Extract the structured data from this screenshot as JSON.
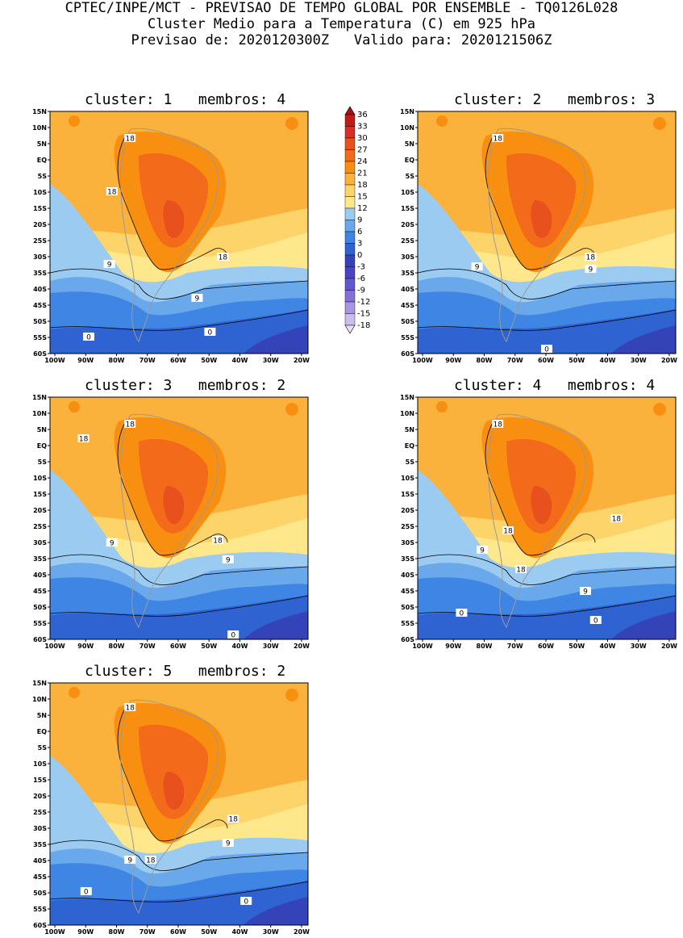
{
  "header": {
    "line1": "CPTEC/INPE/MCT - PREVISAO DE TEMPO GLOBAL POR ENSEMBLE - TQ0126L028",
    "line2": "Cluster Medio para a Temperatura (C) em 925 hPa",
    "line3": "Previsao de: 2020120300Z   Valido para: 2020121506Z"
  },
  "lat_ticks": [
    "15N",
    "10N",
    "5N",
    "EQ",
    "5S",
    "10S",
    "15S",
    "20S",
    "25S",
    "30S",
    "35S",
    "40S",
    "45S",
    "50S",
    "55S",
    "60S"
  ],
  "lon_ticks": [
    "100W",
    "90W",
    "80W",
    "70W",
    "60W",
    "50W",
    "40W",
    "30W",
    "20W"
  ],
  "colorbar": {
    "labels": [
      "36",
      "33",
      "30",
      "27",
      "24",
      "21",
      "18",
      "15",
      "12",
      "9",
      "6",
      "3",
      "0",
      "-3",
      "-6",
      "-9",
      "-12",
      "-15",
      "-18"
    ],
    "colors": [
      "#a50f15",
      "#c01a1a",
      "#d62f26",
      "#e8501e",
      "#f26a1a",
      "#f98f10",
      "#fbb23c",
      "#fdd46a",
      "#fee88b",
      "#9ccbf2",
      "#6aa8ec",
      "#3f85e3",
      "#2f63d2",
      "#3443b8",
      "#4a44c4",
      "#6456ce",
      "#8671d8",
      "#a996e2",
      "#cbbdee",
      "#e8e0f6"
    ]
  },
  "panels": [
    {
      "title": "cluster: 1   membros: 4",
      "contour_labels": [
        "18",
        "18",
        "18",
        "9",
        "9",
        "0",
        "0"
      ]
    },
    {
      "title": "cluster: 2   membros: 3",
      "contour_labels": [
        "18",
        "18",
        "9",
        "9",
        "0"
      ]
    },
    {
      "title": "cluster: 3   membros: 2",
      "contour_labels": [
        "18",
        "18",
        "18",
        "9",
        "9",
        "0"
      ]
    },
    {
      "title": "cluster: 4   membros: 4",
      "contour_labels": [
        "18",
        "18",
        "18",
        "18",
        "9",
        "9",
        "0",
        "0"
      ]
    },
    {
      "title": "cluster: 5   membros: 2",
      "contour_labels": [
        "18",
        "18",
        "18",
        "9",
        "9",
        "0",
        "0"
      ]
    }
  ]
}
